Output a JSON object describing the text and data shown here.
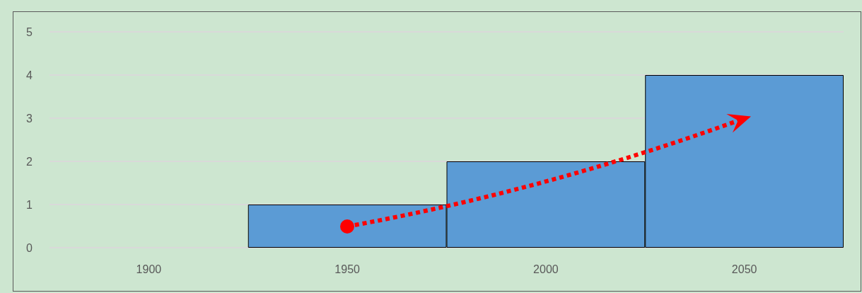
{
  "chart_data": {
    "type": "bar",
    "categories": [
      "1900",
      "1950",
      "2000",
      "2050"
    ],
    "values": [
      0,
      1,
      2,
      4
    ],
    "color": "#5b9bd5",
    "ylim": [
      0,
      5
    ],
    "yticks": [
      0,
      1,
      2,
      3,
      4,
      5
    ],
    "grid": "y"
  }
}
